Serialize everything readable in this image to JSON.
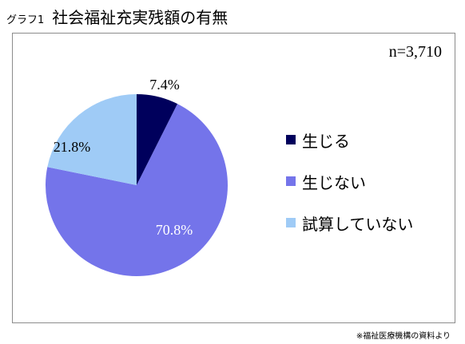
{
  "header": {
    "graph_label": "グラフ1",
    "title": "社会福祉充実残額の有無"
  },
  "sample_size": "n=3,710",
  "source_note": "※福祉医療機構の資料より",
  "chart_data": {
    "type": "pie",
    "title": "社会福祉充実残額の有無",
    "slices": [
      {
        "label": "生じる",
        "value": 7.4,
        "display": "7.4%",
        "color": "#00005c"
      },
      {
        "label": "生じない",
        "value": 70.8,
        "display": "70.8%",
        "color": "#7474ea"
      },
      {
        "label": "試算していない",
        "value": 21.8,
        "display": "21.8%",
        "color": "#9fcbf6"
      }
    ],
    "legend_position": "right",
    "start_angle": "12 o'clock, clockwise"
  }
}
